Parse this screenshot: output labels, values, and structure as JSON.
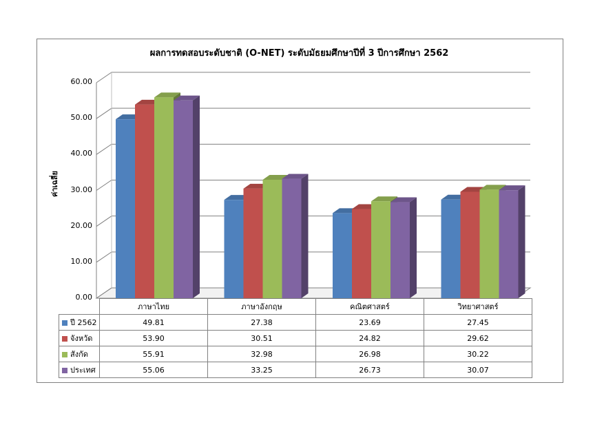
{
  "chart_data": {
    "type": "bar",
    "title": "ผลการทดสอบระดับชาติ (O-NET) ระดับมัธยมศึกษาปีที่ 3 ปีการศึกษา 2562",
    "ylabel": "ค่าเฉลี่ย",
    "xlabel": "",
    "ylim": [
      0,
      60
    ],
    "yticks": [
      "0.00",
      "10.00",
      "20.00",
      "30.00",
      "40.00",
      "50.00",
      "60.00"
    ],
    "grid": true,
    "categories": [
      "ภาษาไทย",
      "ภาษาอังกฤษ",
      "คณิตศาสตร์",
      "วิทยาศาสตร์"
    ],
    "series": [
      {
        "name": "ปี 2562",
        "color": "#4f81bd",
        "values": [
          49.81,
          27.38,
          23.69,
          27.45
        ],
        "labels": [
          "49.81",
          "27.38",
          "23.69",
          "27.45"
        ]
      },
      {
        "name": "จังหวัด",
        "color": "#c0504d",
        "values": [
          53.9,
          30.51,
          24.82,
          29.62
        ],
        "labels": [
          "53.90",
          "30.51",
          "24.82",
          "29.62"
        ]
      },
      {
        "name": "สังกัด",
        "color": "#9bbb59",
        "values": [
          55.91,
          32.98,
          26.98,
          30.22
        ],
        "labels": [
          "55.91",
          "32.98",
          "26.98",
          "30.22"
        ]
      },
      {
        "name": "ประเทศ",
        "color": "#8064a2",
        "values": [
          55.06,
          33.25,
          26.73,
          30.07
        ],
        "labels": [
          "55.06",
          "33.25",
          "26.73",
          "30.07"
        ]
      }
    ]
  }
}
